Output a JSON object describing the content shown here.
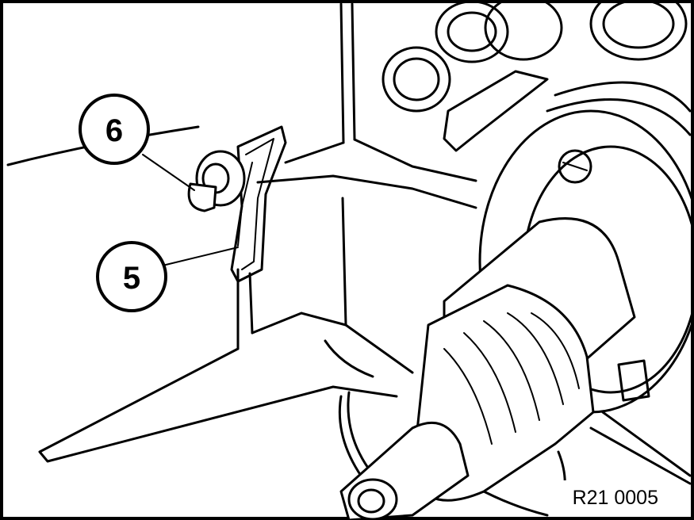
{
  "callouts": [
    {
      "id": "callout-6",
      "label": "6"
    },
    {
      "id": "callout-5",
      "label": "5"
    }
  ],
  "reference": "R21 0005"
}
